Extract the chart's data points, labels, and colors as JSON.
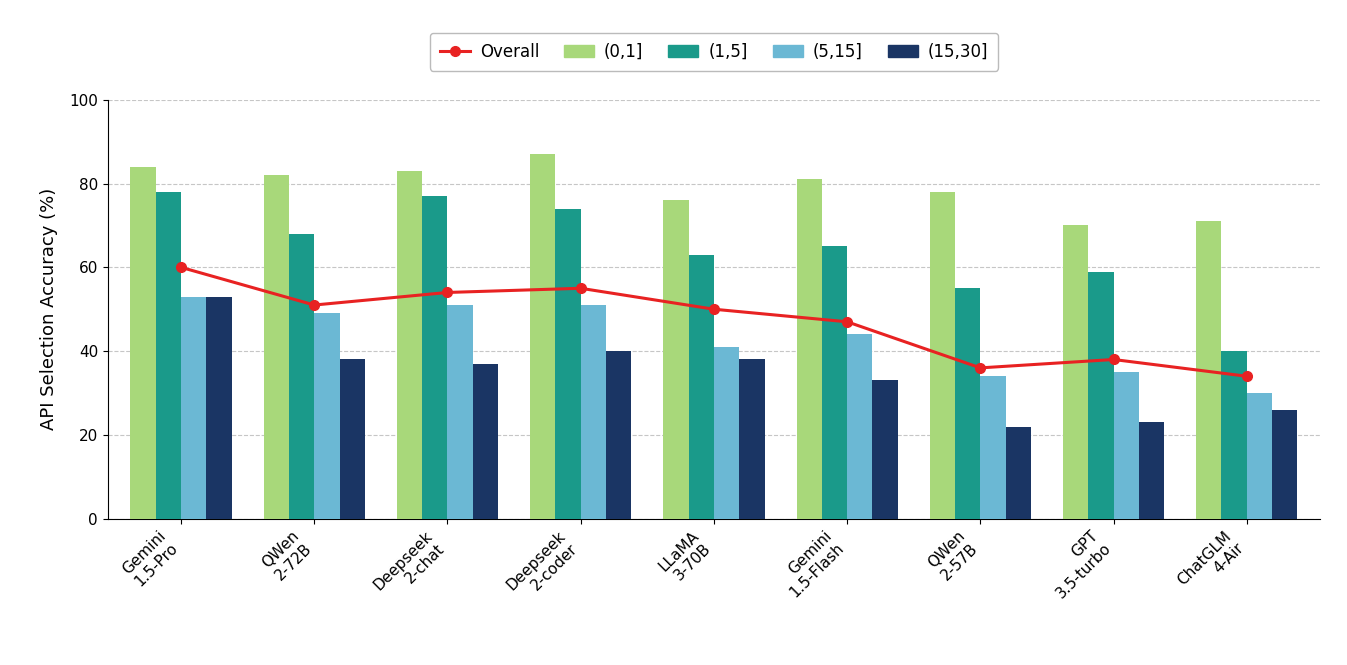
{
  "models": [
    "Gemini\n1.5-Pro",
    "QWen\n2-72B",
    "Deepseek\n2-chat",
    "Deepseek\n2-coder",
    "LLaMA\n3-70B",
    "Gemini\n1.5-Flash",
    "QWen\n2-57B",
    "GPT\n3.5-turbo",
    "ChatGLM\n4-Air"
  ],
  "bar_data": {
    "(0,1]": [
      84,
      82,
      83,
      87,
      76,
      81,
      78,
      70,
      71
    ],
    "(1,5]": [
      78,
      68,
      77,
      74,
      63,
      65,
      55,
      59,
      40
    ],
    "(5,15]": [
      53,
      49,
      51,
      51,
      41,
      44,
      34,
      35,
      30
    ],
    "(15,30]": [
      53,
      38,
      37,
      40,
      38,
      33,
      22,
      23,
      26
    ]
  },
  "overall": [
    60,
    51,
    54,
    55,
    50,
    47,
    36,
    38,
    34
  ],
  "bar_colors": {
    "(0,1]": "#a8d87a",
    "(1,5]": "#1a9a8a",
    "(5,15]": "#6bb8d4",
    "(15,30]": "#1a3564"
  },
  "overall_color": "#e82222",
  "ylabel": "API Selection Accuracy (%)",
  "ylim": [
    0,
    100
  ],
  "yticks": [
    0,
    20,
    40,
    60,
    80,
    100
  ],
  "background_color": "#ffffff",
  "grid_color": "#c0c0c0",
  "bar_width": 0.19,
  "figsize": [
    13.47,
    6.65
  ],
  "dpi": 100
}
